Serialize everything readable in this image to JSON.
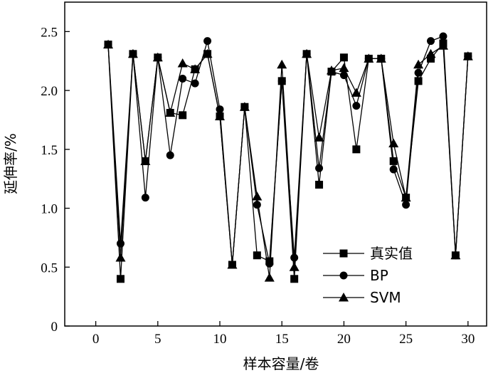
{
  "chart_data": {
    "type": "line",
    "xlabel": "样本容量/卷",
    "ylabel": "延伸率/%",
    "xlim": [
      -2.5,
      31.5
    ],
    "ylim": [
      0,
      2.75
    ],
    "xticks": [
      0,
      5,
      10,
      15,
      20,
      25,
      30
    ],
    "yticks": [
      0,
      0.5,
      1.0,
      1.5,
      2.0,
      2.5
    ],
    "ytick_labels": [
      "0",
      "0.5",
      "1.0",
      "1.5",
      "2.0",
      "2.5"
    ],
    "grid": false,
    "legend_position": "bottom-right",
    "x": [
      1,
      2,
      3,
      4,
      5,
      6,
      7,
      8,
      9,
      10,
      11,
      12,
      13,
      14,
      15,
      16,
      17,
      18,
      19,
      20,
      21,
      22,
      23,
      24,
      25,
      26,
      27,
      28,
      29,
      30
    ],
    "series": [
      {
        "name": "真实值",
        "marker": "square",
        "values": [
          2.39,
          0.4,
          2.31,
          1.4,
          2.28,
          1.81,
          1.79,
          2.18,
          2.31,
          1.78,
          0.52,
          1.86,
          0.6,
          0.55,
          2.08,
          0.4,
          2.31,
          1.2,
          2.16,
          2.28,
          1.5,
          2.27,
          2.27,
          1.4,
          1.09,
          2.08,
          2.27,
          2.4,
          0.6,
          2.29
        ]
      },
      {
        "name": "BP",
        "marker": "circle",
        "values": [
          2.39,
          0.7,
          2.31,
          1.09,
          2.28,
          1.45,
          2.1,
          2.06,
          2.42,
          1.84,
          0.52,
          1.86,
          1.03,
          0.53,
          2.08,
          0.58,
          2.31,
          1.34,
          2.16,
          2.13,
          1.87,
          2.27,
          2.27,
          1.33,
          1.03,
          2.15,
          2.42,
          2.46,
          0.6,
          2.29
        ]
      },
      {
        "name": "SVM",
        "marker": "triangle",
        "values": [
          2.39,
          0.58,
          2.31,
          1.4,
          2.28,
          1.81,
          2.23,
          2.18,
          2.31,
          1.78,
          0.52,
          1.86,
          1.1,
          0.41,
          2.22,
          0.5,
          2.31,
          1.6,
          2.17,
          2.19,
          1.98,
          2.27,
          2.27,
          1.55,
          1.09,
          2.22,
          2.31,
          2.38,
          0.6,
          2.29
        ]
      }
    ]
  }
}
